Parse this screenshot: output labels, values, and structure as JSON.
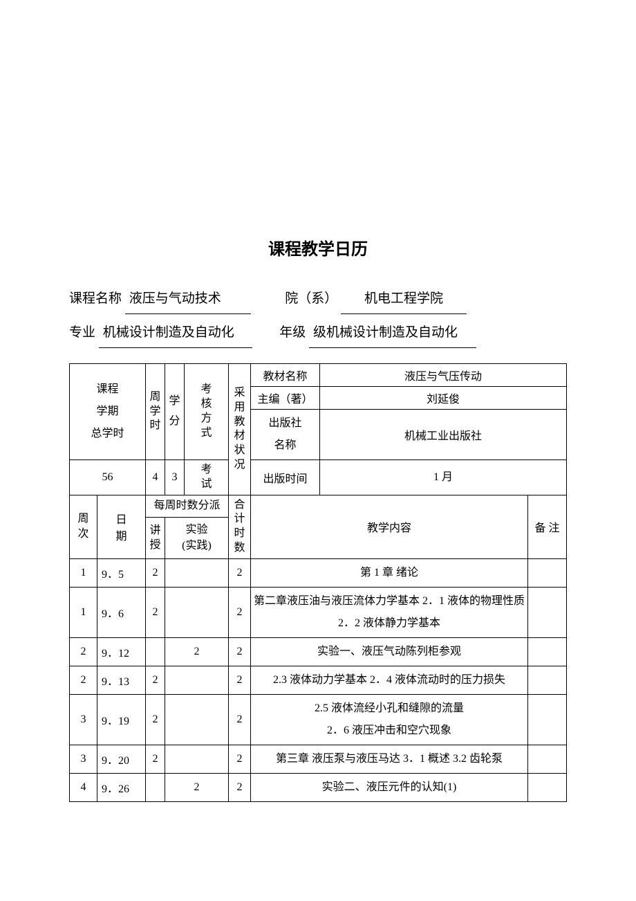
{
  "title": "课程教学日历",
  "info": {
    "course_label": "课程名称",
    "course_value": "液压与气动技术",
    "dept_label": "院（系）",
    "dept_value": "机电工程学院",
    "major_label": "专业",
    "major_value": "机械设计制造及自动化",
    "grade_label": "年级",
    "grade_value": "级机械设计制造及自动化"
  },
  "header_table": {
    "h_period": "课程\n学期\n总学时",
    "h_wh_l1": "周",
    "h_wh_l2": "学",
    "h_wh_l3": "时",
    "h_cr_l1": "学",
    "h_cr_l2": "分",
    "h_assess": "考核方式",
    "h_textbook": "采用教材状况",
    "h_book_name_l": "教材名称",
    "h_book_name_v": "液压与气压传动",
    "h_editor_l": "主编（著）",
    "h_editor_v": "刘延俊",
    "h_pub_l": "出版社\n名称",
    "h_pub_v": "机械工业出版社",
    "h_pubtime_l": "出版时间",
    "h_pubtime_v": "1 月",
    "v_total": "56",
    "v_weekhours": "4",
    "v_credit": "3",
    "v_assess": "考试"
  },
  "sched_header": {
    "week": "周次",
    "date": "日\n期",
    "weekly_alloc": "每周时数分派",
    "lecture": "讲授",
    "lab": "实验\n(实践)",
    "total": "合计时数",
    "content": "教学内容",
    "notes": "备 注"
  },
  "rows": [
    {
      "w": "1",
      "d": "9．5",
      "lec": "2",
      "lab": "",
      "tot": "2",
      "content": "第 1 章  绪论",
      "align": "center"
    },
    {
      "w": "1",
      "d": "9．6",
      "lec": "2",
      "lab": "",
      "tot": "2",
      "content": "第二章液压油与液压流体力学基本 2．1 液体的物理性质  2．2 液体静力学基本",
      "align": "left"
    },
    {
      "w": "2",
      "d": "9．12",
      "lec": "",
      "lab": "2",
      "tot": "2",
      "content": "实验一、液压气动陈列柜参观",
      "align": "left"
    },
    {
      "w": "2",
      "d": "9．13",
      "lec": "2",
      "lab": "",
      "tot": "2",
      "content": "2.3 液体动力学基本 2．4 液体流动时的压力损失",
      "align": "left"
    },
    {
      "w": "3",
      "d": "9．19",
      "lec": "2",
      "lab": "",
      "tot": "2",
      "content": "2.5 液体流经小孔和缝隙的流量\n2．6 液压冲击和空穴现象",
      "align": "left"
    },
    {
      "w": "3",
      "d": "9．20",
      "lec": "2",
      "lab": "",
      "tot": "2",
      "content": "第三章   液压泵与液压马达  3．1 概述  3.2 齿轮泵",
      "align": "left"
    },
    {
      "w": "4",
      "d": "9．26",
      "lec": "",
      "lab": "2",
      "tot": "2",
      "content": "实验二、液压元件的认知(1)",
      "align": "left"
    }
  ]
}
